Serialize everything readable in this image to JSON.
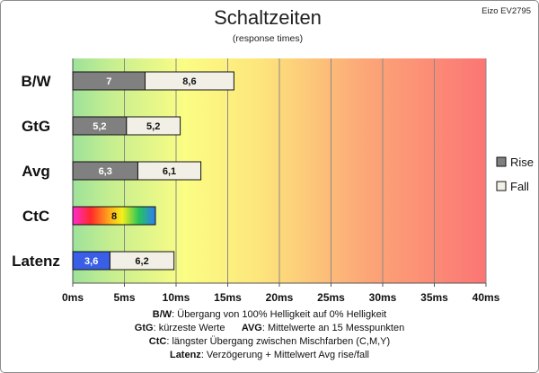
{
  "chart_data": {
    "type": "bar",
    "orientation": "horizontal",
    "stacked": true,
    "title": "Schaltzeiten",
    "subtitle": "(response times)",
    "corner_label": "Eizo EV2795",
    "categories": [
      "B/W",
      "GtG",
      "Avg",
      "CtC",
      "Latenz"
    ],
    "x_ticks": [
      "0ms",
      "5ms",
      "10ms",
      "15ms",
      "20ms",
      "25ms",
      "30ms",
      "35ms",
      "40ms"
    ],
    "xlim": [
      0,
      40
    ],
    "background": "gradient green-yellow-red",
    "grid": true,
    "legend_position": "right",
    "series": [
      {
        "name": "Rise",
        "color": "#808080",
        "values": [
          7,
          5.2,
          6.3,
          8,
          3.6
        ],
        "labels": [
          "7",
          "5,2",
          "6,3",
          "8",
          "3,6"
        ]
      },
      {
        "name": "Fall",
        "color": "#f2f0e6",
        "values": [
          8.6,
          5.2,
          6.1,
          null,
          6.2
        ],
        "labels": [
          "8,6",
          "5,2",
          "6,1",
          "",
          "6,2"
        ]
      }
    ],
    "special_fills": {
      "CtC": "rainbow",
      "Latenz": "#3a5fe6"
    }
  },
  "notes": [
    {
      "label": "B/W",
      "text": ":  Übergang von 100% Helligkeit auf 0% Helligkeit"
    },
    {
      "label": "GtG",
      "text": ": kürzeste Werte",
      "label2": "AVG",
      "text2": ": Mittelwerte  an 15 Messpunkten"
    },
    {
      "label": "CtC",
      "text": ": längster Übergang  zwischen Mischfarben (C,M,Y)"
    },
    {
      "label": "Latenz",
      "text": ": Verzögerung  + Mittelwert Avg rise/fall"
    }
  ]
}
